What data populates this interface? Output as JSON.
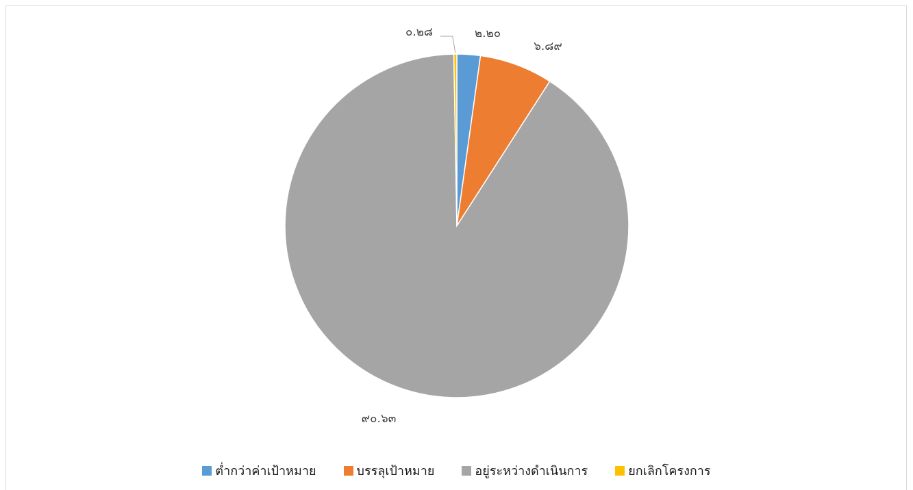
{
  "chart_data": {
    "type": "pie",
    "title": "",
    "categories": [
      "ต่ำกว่าค่าเป้าหมาย",
      "บรรลุเป้าหมาย",
      "อยู่ระหว่างดำเนินการ",
      "ยกเลิกโครงการ"
    ],
    "values": [
      2.2,
      6.89,
      90.63,
      0.28
    ],
    "value_labels": [
      "๒.๒๐",
      "๖.๘๙",
      "๙๐.๖๓",
      "๐.๒๘"
    ],
    "colors": [
      "#5b9bd5",
      "#ed7d31",
      "#a5a5a5",
      "#ffc000"
    ],
    "start_angle_deg": 0,
    "direction": "clockwise",
    "legend_position": "bottom"
  }
}
